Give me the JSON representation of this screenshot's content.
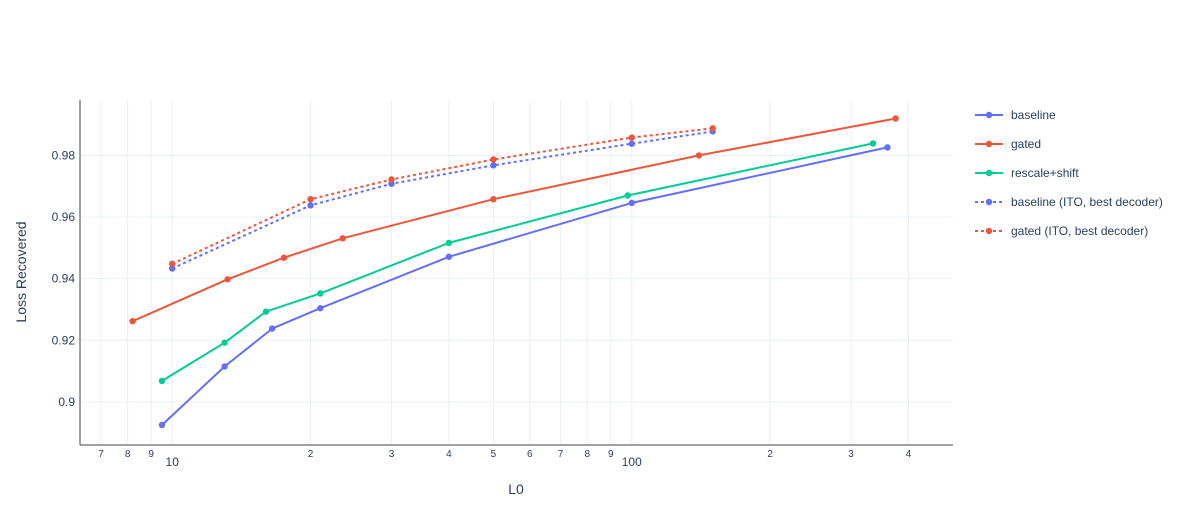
{
  "chart_data": {
    "type": "line",
    "xlabel": "L0",
    "ylabel": "Loss Recovered",
    "x_scale": "log",
    "xlim": [
      6.3,
      500
    ],
    "ylim": [
      0.886,
      0.998
    ],
    "grid": true,
    "legend_position": "right",
    "y_ticks": [
      0.9,
      0.92,
      0.94,
      0.96,
      0.98
    ],
    "y_tick_labels": [
      "0.9",
      "0.92",
      "0.94",
      "0.96",
      "0.98"
    ],
    "x_ticks_major": [
      10,
      100
    ],
    "x_ticks_major_labels": [
      "10",
      "100"
    ],
    "x_ticks_minor": [
      7,
      8,
      9,
      20,
      30,
      40,
      50,
      60,
      70,
      80,
      90,
      200,
      300,
      400
    ],
    "x_ticks_minor_labels": [
      "7",
      "8",
      "9",
      "2",
      "3",
      "4",
      "5",
      "6",
      "7",
      "8",
      "9",
      "2",
      "3",
      "4"
    ],
    "series": [
      {
        "name": "baseline",
        "color": "#636efa",
        "dash": "solid",
        "x": [
          9.5,
          13,
          16.5,
          21,
          40,
          100,
          360
        ],
        "y": [
          0.8925,
          0.9115,
          0.9238,
          0.9304,
          0.9471,
          0.9646,
          0.9826
        ]
      },
      {
        "name": "gated",
        "color": "#ef553b",
        "dash": "solid",
        "x": [
          8.2,
          13.2,
          17.5,
          23.5,
          50,
          140,
          375
        ],
        "y": [
          0.9262,
          0.9398,
          0.9468,
          0.9531,
          0.9658,
          0.98,
          0.992
        ]
      },
      {
        "name": "rescale+shift",
        "color": "#00cc96",
        "dash": "solid",
        "x": [
          9.5,
          13,
          16,
          21,
          40,
          98,
          335
        ],
        "y": [
          0.9068,
          0.9192,
          0.9293,
          0.9352,
          0.9516,
          0.967,
          0.9839
        ]
      },
      {
        "name": "baseline (ITO, best decoder)",
        "color": "#636efa",
        "dash": "dot",
        "x": [
          10,
          20,
          30,
          50,
          100,
          150
        ],
        "y": [
          0.9433,
          0.9638,
          0.9708,
          0.9768,
          0.9838,
          0.9878
        ]
      },
      {
        "name": "gated (ITO, best decoder)",
        "color": "#ef553b",
        "dash": "dot",
        "x": [
          10,
          20,
          30,
          50,
          100,
          150
        ],
        "y": [
          0.9448,
          0.9658,
          0.9722,
          0.9787,
          0.9858,
          0.9888
        ]
      }
    ]
  }
}
